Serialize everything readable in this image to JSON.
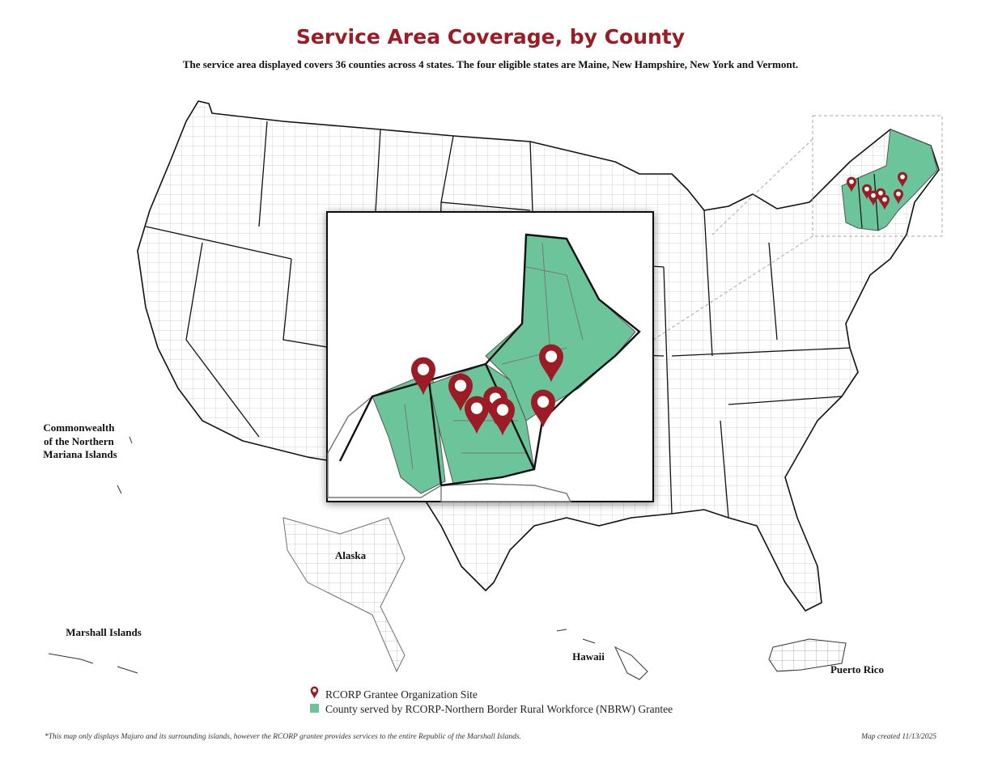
{
  "header": {
    "title": "Service Area Coverage, by County",
    "subtitle": "The service area displayed covers 36 counties across 4 states. The four eligible states are Maine, New Hampshire, New York and Vermont."
  },
  "labels": {
    "cnmi": [
      "Commonwealth",
      "of the Northern",
      "Mariana Islands"
    ],
    "alaska": "Alaska",
    "marshall": "Marshall Islands",
    "hawaii": "Hawaii",
    "puerto_rico": "Puerto Rico"
  },
  "legend": [
    "RCORP Grantee Organization Site",
    "County served by RCORP-Northern Border Rural Workforce (NBRW) Grantee"
  ],
  "footer": {
    "note": "*This map only displays Majuro and its surrounding islands, however the RCORP grantee provides services to the entire Republic of the Marshall Islands.",
    "date": "Map created 11/13/2025"
  }
}
